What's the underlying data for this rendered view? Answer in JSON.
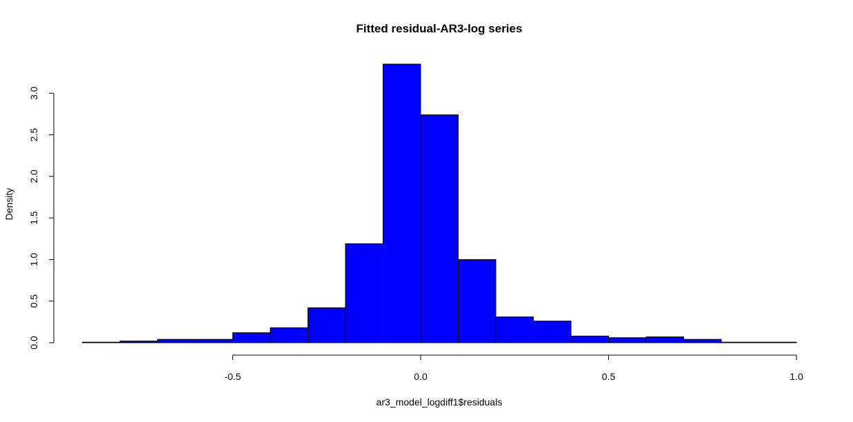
{
  "chart_data": {
    "type": "bar",
    "title": "Fitted residual-AR3-log series",
    "xlabel": "ar3_model_logdiff1$residuals",
    "ylabel": "Density",
    "bar_color": "#0000ff",
    "bin_width": 0.1,
    "bins": [
      {
        "start": -0.9,
        "end": -0.8,
        "density": 0.005
      },
      {
        "start": -0.8,
        "end": -0.7,
        "density": 0.02
      },
      {
        "start": -0.7,
        "end": -0.6,
        "density": 0.04
      },
      {
        "start": -0.6,
        "end": -0.5,
        "density": 0.04
      },
      {
        "start": -0.5,
        "end": -0.4,
        "density": 0.12
      },
      {
        "start": -0.4,
        "end": -0.3,
        "density": 0.18
      },
      {
        "start": -0.3,
        "end": -0.2,
        "density": 0.42
      },
      {
        "start": -0.2,
        "end": -0.1,
        "density": 1.19
      },
      {
        "start": -0.1,
        "end": 0.0,
        "density": 3.35
      },
      {
        "start": 0.0,
        "end": 0.1,
        "density": 2.74
      },
      {
        "start": 0.1,
        "end": 0.2,
        "density": 1.0
      },
      {
        "start": 0.2,
        "end": 0.3,
        "density": 0.31
      },
      {
        "start": 0.3,
        "end": 0.4,
        "density": 0.26
      },
      {
        "start": 0.4,
        "end": 0.5,
        "density": 0.08
      },
      {
        "start": 0.5,
        "end": 0.6,
        "density": 0.06
      },
      {
        "start": 0.6,
        "end": 0.7,
        "density": 0.07
      },
      {
        "start": 0.7,
        "end": 0.8,
        "density": 0.04
      },
      {
        "start": 0.8,
        "end": 0.9,
        "density": 0.0
      },
      {
        "start": 0.9,
        "end": 1.0,
        "density": 0.005
      }
    ],
    "xlim": [
      -0.9,
      1.0
    ],
    "ylim": [
      0,
      3.35
    ],
    "x_ticks": [
      -0.5,
      0.0,
      0.5,
      1.0
    ],
    "x_tick_labels": [
      "-0.5",
      "0.0",
      "0.5",
      "1.0"
    ],
    "y_ticks": [
      0.0,
      0.5,
      1.0,
      1.5,
      2.0,
      2.5,
      3.0
    ],
    "y_tick_labels": [
      "0.0",
      "0.5",
      "1.0",
      "1.5",
      "2.0",
      "2.5",
      "3.0"
    ],
    "grid": false,
    "legend": "none"
  }
}
